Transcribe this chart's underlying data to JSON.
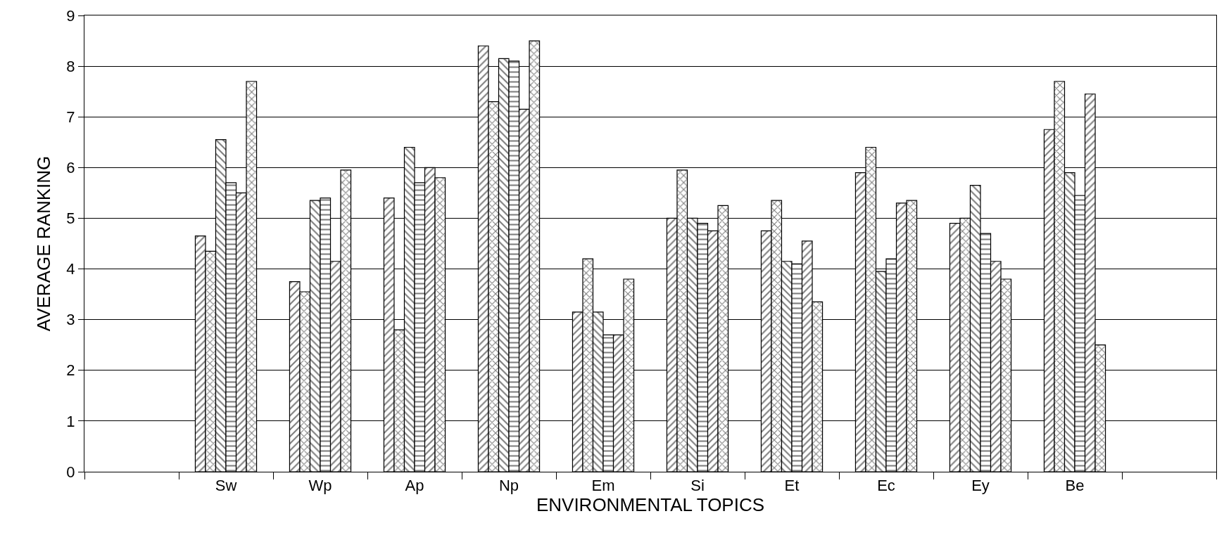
{
  "chart_data": {
    "type": "bar",
    "xlabel": "ENVIRONMENTAL TOPICS",
    "ylabel": "AVERAGE RANKING",
    "categories": [
      null,
      "Sw",
      "Wp",
      "Ap",
      "Np",
      "Em",
      "Si",
      "Et",
      "Ec",
      "Ey",
      "Be",
      null
    ],
    "series": [
      {
        "color": "#000000",
        "values": [
          null,
          4.65,
          3.75,
          5.4,
          8.4,
          3.15,
          5.0,
          4.75,
          5.9,
          4.9,
          6.75,
          null
        ]
      },
      {
        "color": "#000000",
        "values": [
          null,
          4.35,
          3.55,
          2.8,
          7.3,
          4.2,
          5.95,
          5.35,
          6.4,
          5.0,
          7.7,
          null
        ]
      },
      {
        "color": "#000000",
        "values": [
          null,
          6.55,
          5.35,
          6.4,
          8.15,
          3.15,
          5.0,
          4.15,
          3.95,
          5.65,
          5.9,
          null
        ]
      },
      {
        "color": "#000000",
        "values": [
          null,
          5.7,
          5.4,
          5.7,
          8.1,
          2.7,
          4.9,
          4.1,
          4.2,
          4.7,
          5.45,
          null
        ]
      },
      {
        "color": "#000000",
        "values": [
          null,
          5.5,
          4.15,
          6.0,
          7.15,
          2.7,
          4.75,
          4.55,
          5.3,
          4.15,
          7.45,
          null
        ]
      },
      {
        "color": "#000000",
        "values": [
          null,
          7.7,
          5.95,
          5.8,
          8.5,
          3.8,
          5.25,
          3.35,
          5.35,
          3.8,
          2.5,
          null
        ]
      }
    ],
    "ylim": [
      0,
      9
    ],
    "yticks": [
      0,
      1,
      2,
      3,
      4,
      5,
      6,
      7,
      8,
      9
    ],
    "grid": "y"
  }
}
